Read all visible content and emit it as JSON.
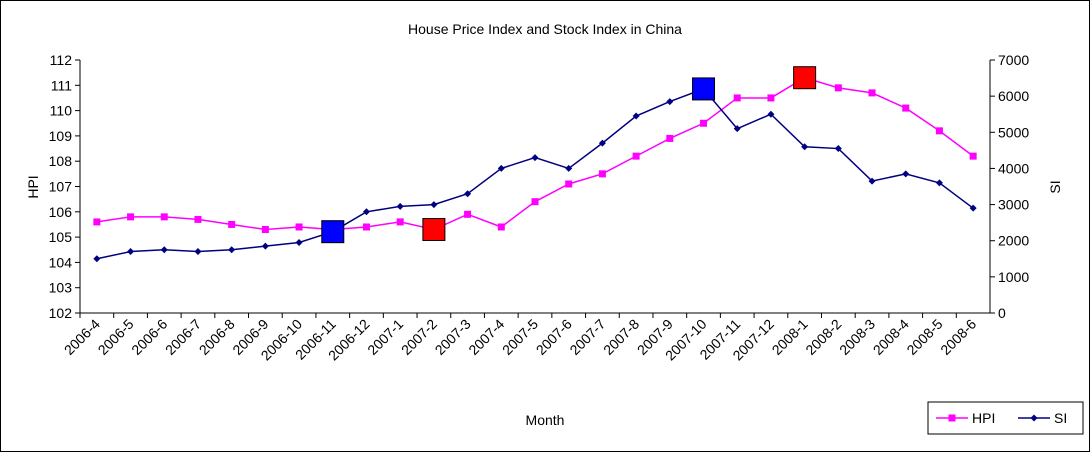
{
  "chart_data": {
    "type": "line",
    "title": "House Price Index and Stock Index in China",
    "x_label": "Month",
    "y_label": "HPI",
    "y2_label": "SI",
    "categories": [
      "2006-4",
      "2006-5",
      "2006-6",
      "2006-7",
      "2006-8",
      "2006-9",
      "2006-10",
      "2006-11",
      "2006-12",
      "2007-1",
      "2007-2",
      "2007-3",
      "2007-4",
      "2007-5",
      "2007-6",
      "2007-7",
      "2007-8",
      "2007-9",
      "2007-10",
      "2007-11",
      "2007-12",
      "2008-1",
      "2008-2",
      "2008-3",
      "2008-4",
      "2008-5",
      "2008-6"
    ],
    "series": [
      {
        "name": "HPI",
        "color": "#ff00ff",
        "marker": "square",
        "values": [
          105.6,
          105.8,
          105.8,
          105.7,
          105.5,
          105.3,
          105.4,
          105.3,
          105.4,
          105.6,
          105.3,
          105.9,
          105.4,
          106.4,
          107.1,
          107.5,
          108.2,
          108.9,
          109.5,
          110.5,
          110.5,
          111.3,
          110.9,
          110.7,
          110.1,
          109.2,
          108.2
        ]
      },
      {
        "name": "SI",
        "color": "#000080",
        "marker": "diamond",
        "axis": "y2",
        "values": [
          1500,
          1700,
          1750,
          1700,
          1750,
          1850,
          1950,
          2250,
          2800,
          2950,
          3000,
          3300,
          4000,
          4300,
          4000,
          4700,
          5450,
          5850,
          6200,
          5100,
          5500,
          4600,
          4550,
          3650,
          3850,
          3600,
          2900
        ]
      }
    ],
    "highlights": [
      {
        "series": 1,
        "index": 7,
        "color": "#0000ff"
      },
      {
        "series": 0,
        "index": 10,
        "color": "#ff0000"
      },
      {
        "series": 1,
        "index": 18,
        "color": "#0000ff"
      },
      {
        "series": 0,
        "index": 21,
        "color": "#ff0000"
      }
    ],
    "ylim": [
      102,
      112
    ],
    "yticks": [
      102,
      103,
      104,
      105,
      106,
      107,
      108,
      109,
      110,
      111,
      112
    ],
    "y2lim": [
      0,
      7000
    ],
    "y2ticks": [
      0,
      1000,
      2000,
      3000,
      4000,
      5000,
      6000,
      7000
    ],
    "legend": "bottom-right"
  }
}
